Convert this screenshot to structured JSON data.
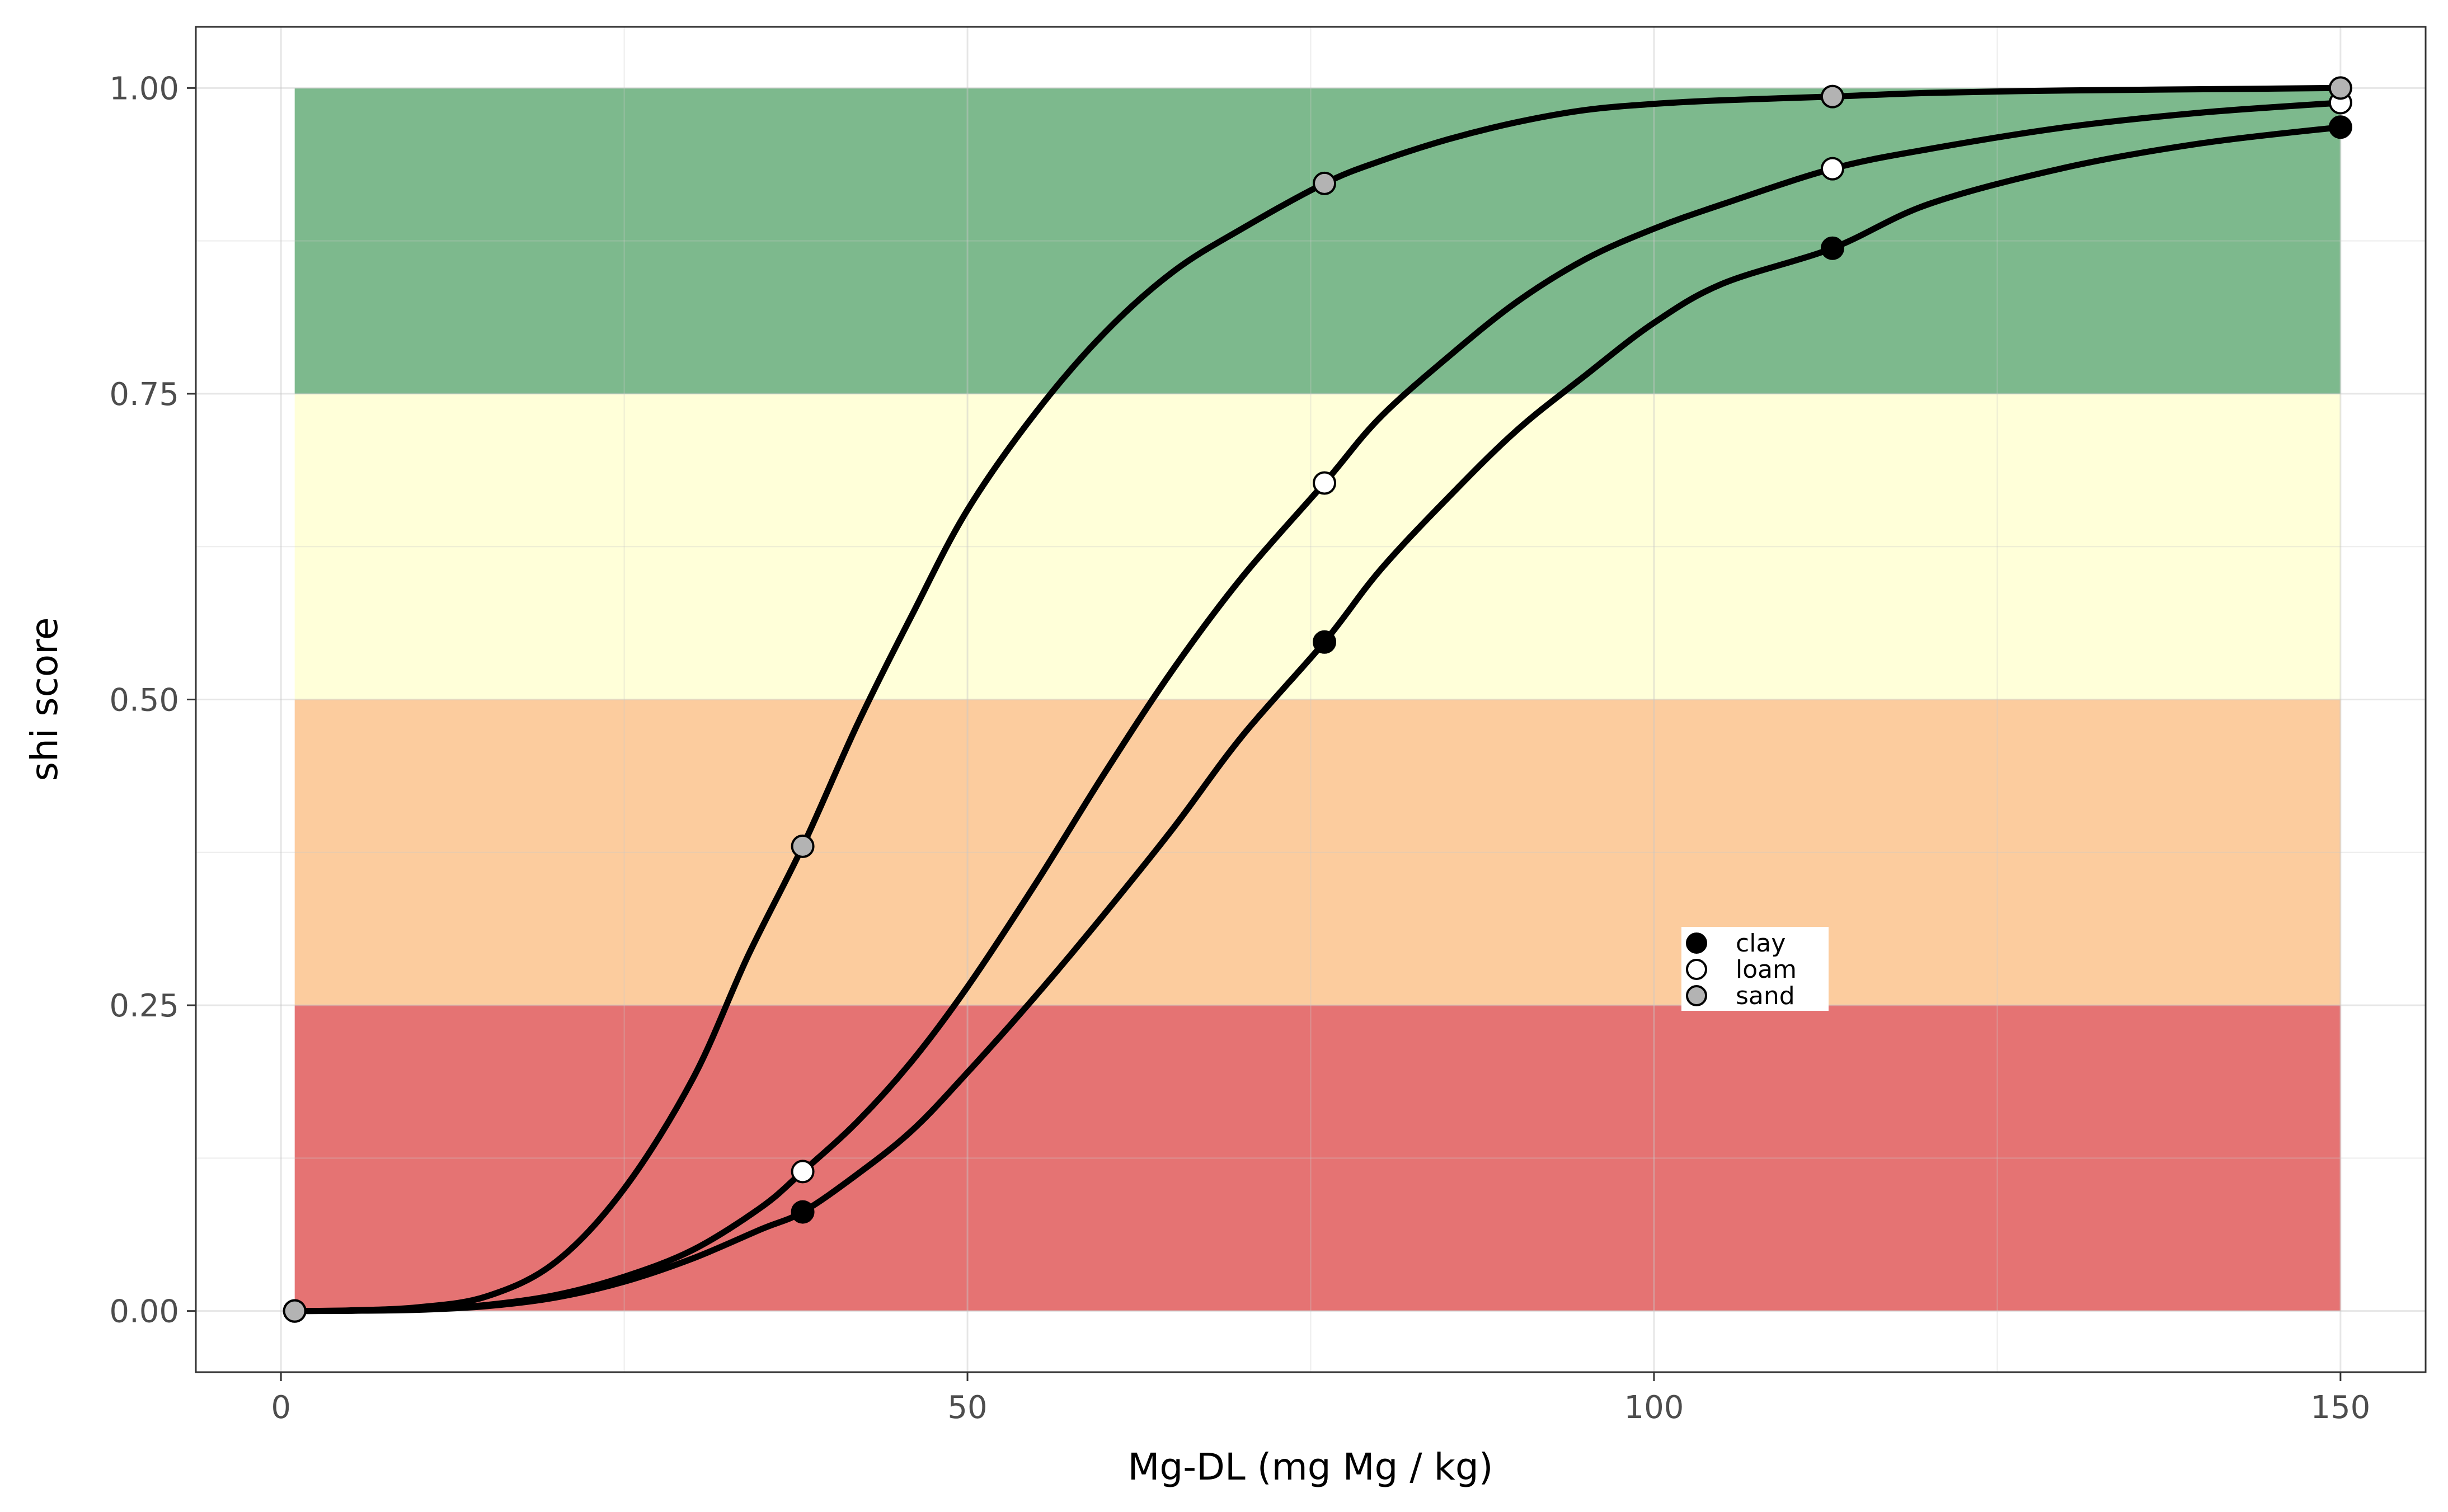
{
  "chart_data": {
    "type": "line",
    "xlabel": "Mg-DL (mg Mg / kg)",
    "ylabel": "shi score",
    "xlim": [
      -6.2,
      156.2
    ],
    "ylim": [
      -0.05,
      1.05
    ],
    "x_ticks": [
      0,
      50,
      100,
      150
    ],
    "x_tick_labels": [
      "0",
      "50",
      "100",
      "150"
    ],
    "y_ticks": [
      0,
      0.25,
      0.5,
      0.75,
      1.0
    ],
    "y_tick_labels": [
      "0.00",
      "0.25",
      "0.50",
      "0.75",
      "1.00"
    ],
    "grid": true,
    "bands": [
      {
        "ymin": 0.0,
        "ymax": 0.25,
        "xmin": 1,
        "xmax": 150,
        "color": "#E57373"
      },
      {
        "ymin": 0.25,
        "ymax": 0.5,
        "xmin": 1,
        "xmax": 150,
        "color": "#FCCC9E"
      },
      {
        "ymin": 0.5,
        "ymax": 0.75,
        "xmin": 1,
        "xmax": 150,
        "color": "#FFFFD9"
      },
      {
        "ymin": 0.75,
        "ymax": 1.0,
        "xmin": 1,
        "xmax": 150,
        "color": "#7DB98D"
      }
    ],
    "series": [
      {
        "name": "clay",
        "marker_color": "#000000",
        "curve": [
          [
            1,
            0.0
          ],
          [
            5,
            0.0002
          ],
          [
            10,
            0.001
          ],
          [
            15,
            0.004
          ],
          [
            20,
            0.011
          ],
          [
            25,
            0.024
          ],
          [
            30,
            0.043
          ],
          [
            35,
            0.067
          ],
          [
            38,
            0.081
          ],
          [
            42,
            0.112
          ],
          [
            46,
            0.148
          ],
          [
            50,
            0.195
          ],
          [
            55,
            0.258
          ],
          [
            60,
            0.325
          ],
          [
            65,
            0.395
          ],
          [
            70,
            0.47
          ],
          [
            76,
            0.547
          ],
          [
            80,
            0.605
          ],
          [
            85,
            0.665
          ],
          [
            90,
            0.72
          ],
          [
            95,
            0.765
          ],
          [
            100,
            0.808
          ],
          [
            105,
            0.84
          ],
          [
            113,
            0.869
          ],
          [
            120,
            0.905
          ],
          [
            130,
            0.935
          ],
          [
            140,
            0.955
          ],
          [
            150,
            0.968
          ]
        ],
        "points": [
          [
            1,
            0.0
          ],
          [
            38,
            0.081
          ],
          [
            76,
            0.547
          ],
          [
            113,
            0.869
          ],
          [
            150,
            0.968
          ]
        ]
      },
      {
        "name": "loam",
        "marker_color": "#ffffff",
        "curve": [
          [
            1,
            0.0
          ],
          [
            5,
            0.0002
          ],
          [
            10,
            0.0015
          ],
          [
            15,
            0.005
          ],
          [
            20,
            0.013
          ],
          [
            25,
            0.028
          ],
          [
            30,
            0.05
          ],
          [
            35,
            0.085
          ],
          [
            38,
            0.114
          ],
          [
            42,
            0.155
          ],
          [
            46,
            0.205
          ],
          [
            50,
            0.265
          ],
          [
            55,
            0.35
          ],
          [
            60,
            0.44
          ],
          [
            65,
            0.525
          ],
          [
            70,
            0.6
          ],
          [
            76,
            0.677
          ],
          [
            80,
            0.73
          ],
          [
            85,
            0.78
          ],
          [
            90,
            0.825
          ],
          [
            95,
            0.86
          ],
          [
            100,
            0.885
          ],
          [
            105,
            0.905
          ],
          [
            113,
            0.934
          ],
          [
            120,
            0.95
          ],
          [
            130,
            0.968
          ],
          [
            140,
            0.98
          ],
          [
            150,
            0.988
          ]
        ],
        "points": [
          [
            1,
            0.0
          ],
          [
            38,
            0.114
          ],
          [
            76,
            0.677
          ],
          [
            113,
            0.934
          ],
          [
            150,
            0.988
          ]
        ]
      },
      {
        "name": "sand",
        "marker_color": "#b3b3b3",
        "curve": [
          [
            1,
            0.0
          ],
          [
            5,
            0.0005
          ],
          [
            10,
            0.003
          ],
          [
            15,
            0.012
          ],
          [
            20,
            0.04
          ],
          [
            25,
            0.1
          ],
          [
            30,
            0.19
          ],
          [
            34,
            0.29
          ],
          [
            38,
            0.38
          ],
          [
            42,
            0.48
          ],
          [
            46,
            0.57
          ],
          [
            50,
            0.655
          ],
          [
            55,
            0.735
          ],
          [
            60,
            0.8
          ],
          [
            65,
            0.85
          ],
          [
            70,
            0.885
          ],
          [
            76,
            0.922
          ],
          [
            80,
            0.94
          ],
          [
            85,
            0.958
          ],
          [
            90,
            0.972
          ],
          [
            95,
            0.982
          ],
          [
            100,
            0.987
          ],
          [
            105,
            0.99
          ],
          [
            113,
            0.993
          ],
          [
            120,
            0.996
          ],
          [
            130,
            0.998
          ],
          [
            140,
            0.999
          ],
          [
            150,
            1.0
          ]
        ],
        "points": [
          [
            1,
            0.0
          ],
          [
            38,
            0.38
          ],
          [
            76,
            0.922
          ],
          [
            113,
            0.993
          ],
          [
            150,
            1.0
          ]
        ]
      }
    ],
    "legend_position": "inside, lower-right of center"
  }
}
